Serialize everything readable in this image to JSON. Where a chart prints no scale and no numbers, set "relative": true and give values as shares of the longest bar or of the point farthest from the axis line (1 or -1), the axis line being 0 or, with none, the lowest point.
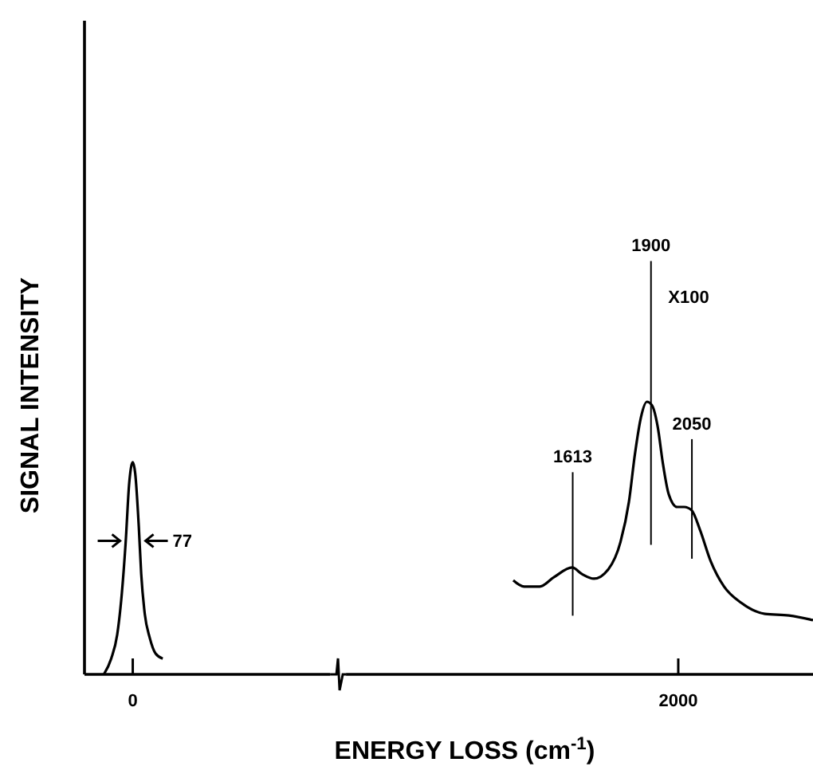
{
  "chart_data": {
    "type": "line",
    "relative": true,
    "xlabel": "ENERGY LOSS (cm$^{-1}$)",
    "ylabel": "SIGNAL INTENSITY",
    "xlim": [
      -177,
      2494
    ],
    "xticks": [
      0,
      2000
    ],
    "marker": "none",
    "line_style": "solid",
    "grid": false,
    "ref_lines": [
      {
        "axis": "x",
        "value": 1613,
        "label": "1613"
      },
      {
        "axis": "x",
        "value": 1900,
        "label": "1900"
      },
      {
        "axis": "x",
        "value": 2050,
        "label": "2050"
      }
    ],
    "series": [
      {
        "color": "#000000",
        "x": [
          -106,
          -79,
          -57,
          -40,
          -26,
          -13,
          0,
          9,
          22,
          31,
          44,
          62,
          84,
          110
        ],
        "values": [
          0,
          0.058,
          0.146,
          0.298,
          0.485,
          0.702,
          0.778,
          0.737,
          0.544,
          0.368,
          0.222,
          0.135,
          0.076,
          0.058
        ]
      },
      {
        "color": "#000000",
        "x": [
          1395,
          1435,
          1492,
          1545,
          1611,
          1647,
          1691,
          1744,
          1788,
          1819,
          1841,
          1863,
          1885,
          1903,
          1925,
          1943,
          1965,
          1996,
          2022,
          2049,
          2079,
          2119,
          2168,
          2230,
          2318,
          2406,
          2494
        ],
        "values": [
          0.345,
          0.322,
          0.322,
          0.357,
          0.392,
          0.368,
          0.351,
          0.386,
          0.485,
          0.632,
          0.807,
          0.942,
          1,
          0.988,
          0.906,
          0.778,
          0.661,
          0.614,
          0.614,
          0.602,
          0.532,
          0.415,
          0.322,
          0.263,
          0.222,
          0.216,
          0.199
        ]
      }
    ],
    "annotations": [
      {
        "text": "77",
        "x": 0,
        "y": 0.49
      },
      "X100"
    ]
  }
}
